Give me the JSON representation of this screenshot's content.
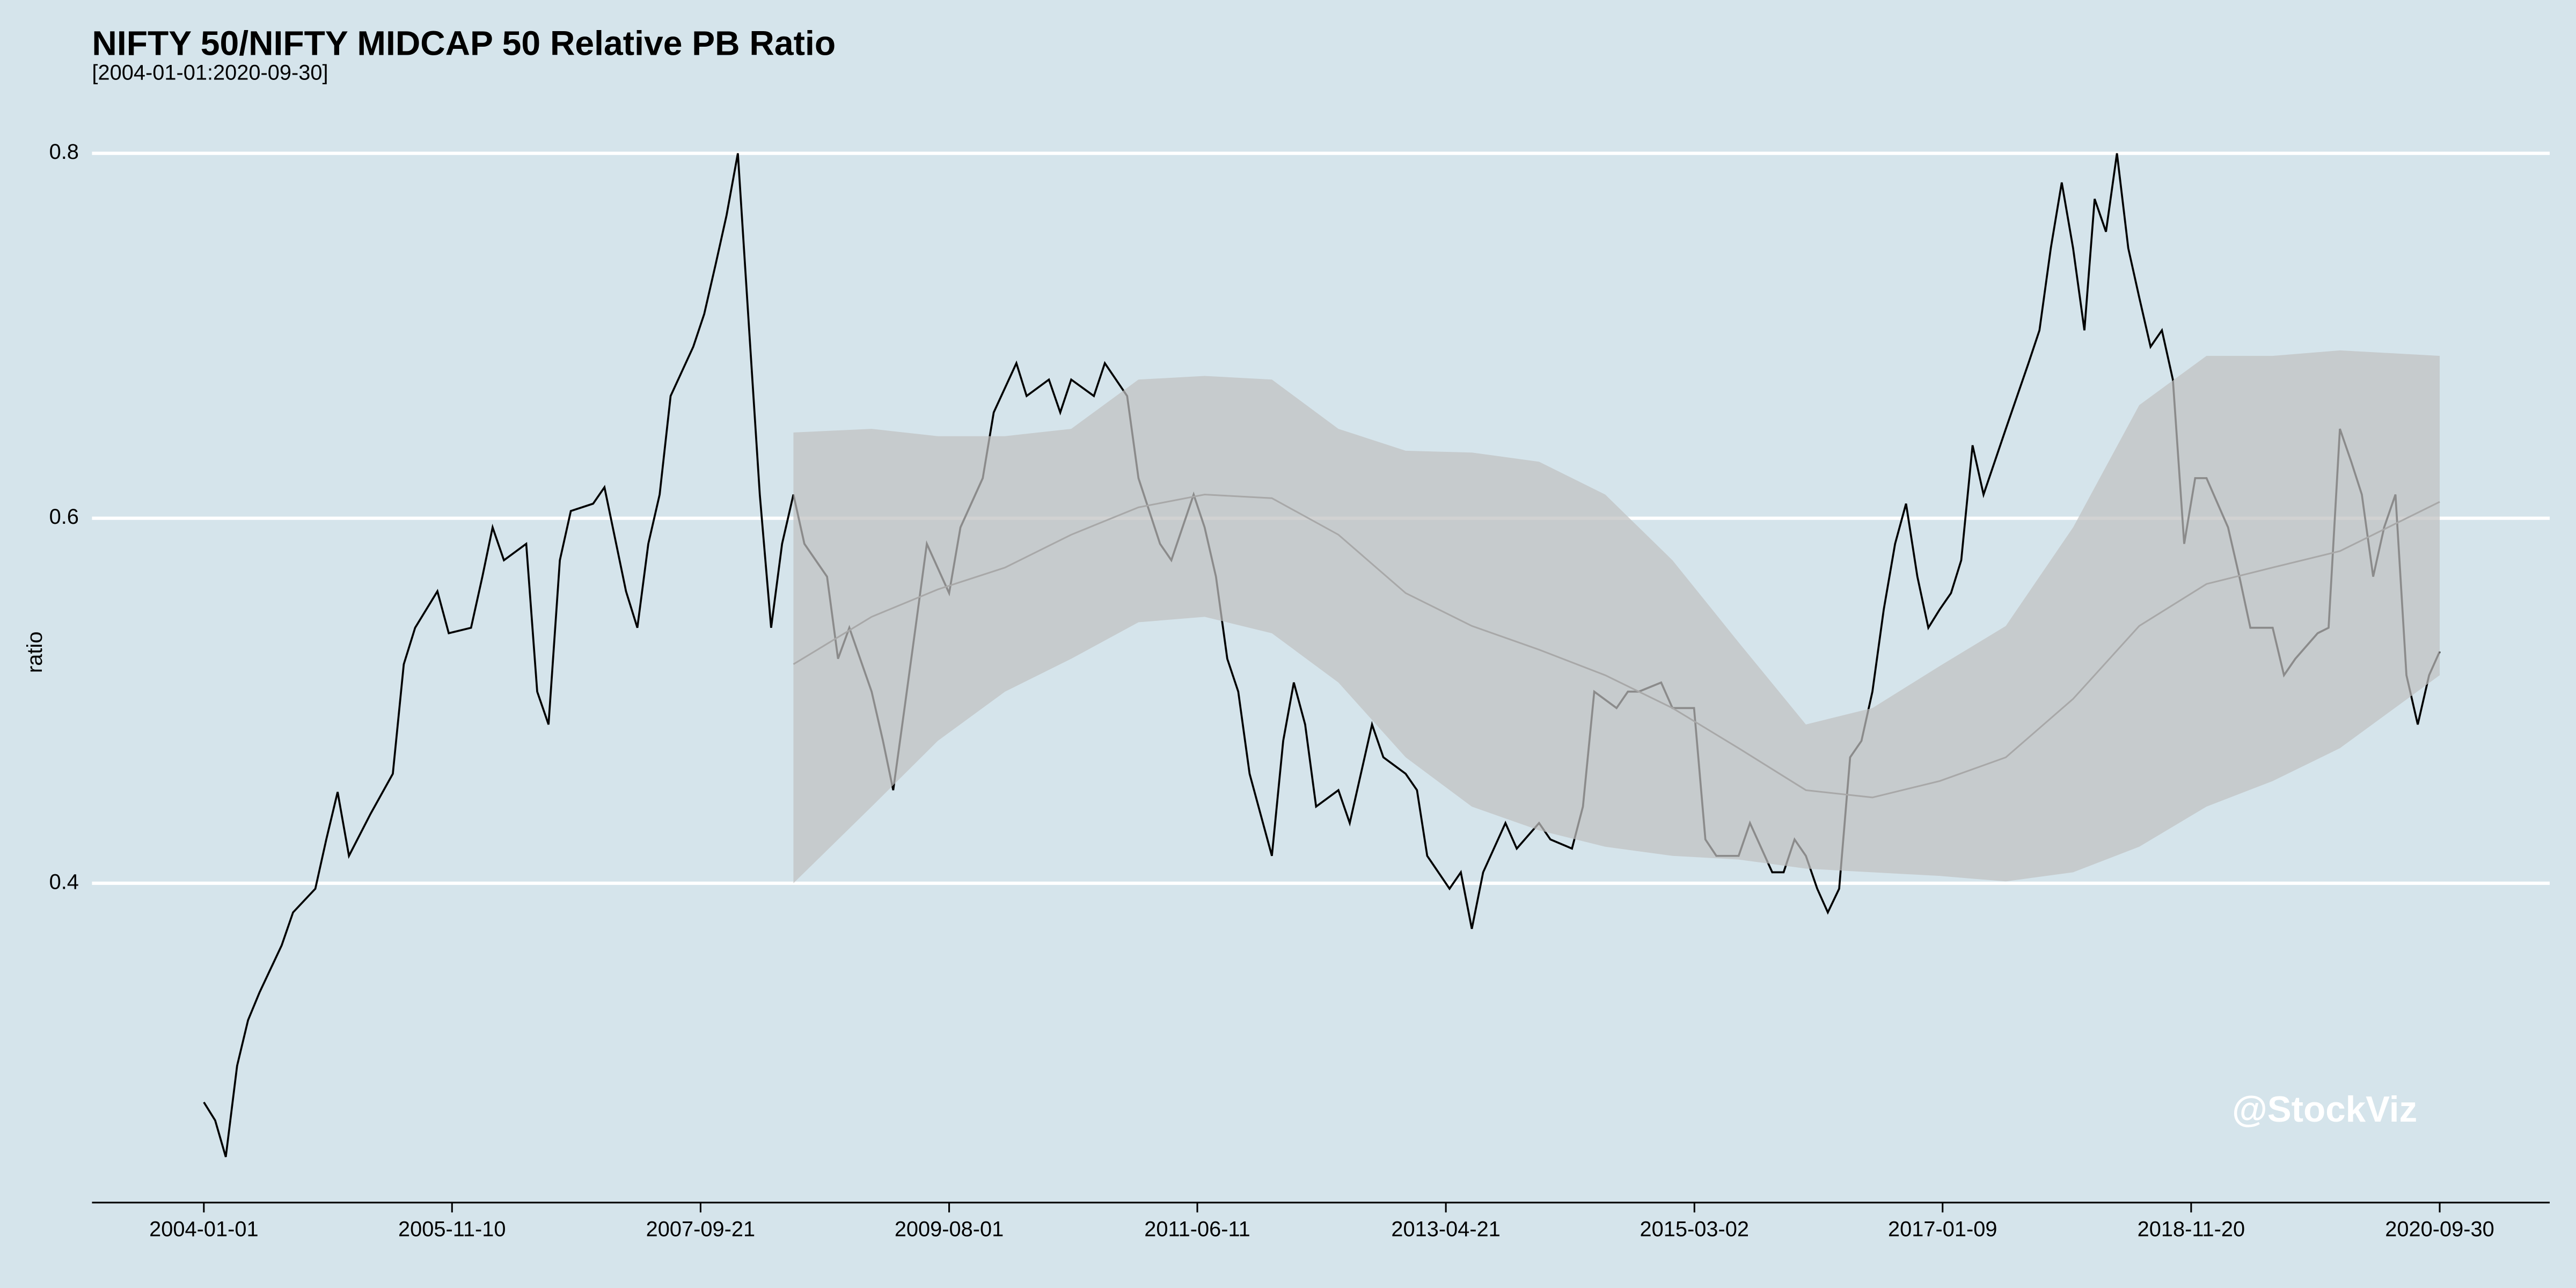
{
  "chart_data": {
    "type": "line",
    "title": "NIFTY 50/NIFTY MIDCAP 50 Relative PB Ratio",
    "subtitle": "[2004-01-01:2020-09-30]",
    "y_label": "ratio",
    "watermark": "@StockViz",
    "color": "#000000",
    "grid": true,
    "xlim": [
      "2003-03-01",
      "2021-07-28"
    ],
    "ylim": [
      0.225,
      0.83
    ],
    "xticks": [
      "2004-01-01",
      "2005-11-10",
      "2007-09-21",
      "2009-08-01",
      "2011-06-11",
      "2013-04-21",
      "2015-03-02",
      "2017-01-09",
      "2018-11-20",
      "2020-09-30"
    ],
    "yticks": [
      0.4,
      0.6,
      0.8
    ],
    "x": [
      "2004-01-01",
      "2004-02-01",
      "2004-03-01",
      "2004-04-01",
      "2004-05-01",
      "2004-06-01",
      "2004-08-01",
      "2004-09-01",
      "2004-11-01",
      "2004-12-01",
      "2005-01-01",
      "2005-02-01",
      "2005-04-01",
      "2005-06-01",
      "2005-07-01",
      "2005-08-01",
      "2005-10-01",
      "2005-11-01",
      "2006-01-01",
      "2006-02-01",
      "2006-03-01",
      "2006-04-01",
      "2006-06-01",
      "2006-07-01",
      "2006-08-01",
      "2006-09-01",
      "2006-10-01",
      "2006-12-01",
      "2007-01-01",
      "2007-03-01",
      "2007-04-01",
      "2007-05-01",
      "2007-06-01",
      "2007-07-01",
      "2007-09-01",
      "2007-10-01",
      "2007-11-01",
      "2007-12-01",
      "2008-01-01",
      "2008-02-01",
      "2008-03-01",
      "2008-04-01",
      "2008-05-01",
      "2008-06-01",
      "2008-07-01",
      "2008-09-01",
      "2008-10-01",
      "2008-11-01",
      "2009-01-01",
      "2009-02-01",
      "2009-03-01",
      "2009-04-01",
      "2009-05-01",
      "2009-06-01",
      "2009-08-01",
      "2009-09-01",
      "2009-11-01",
      "2009-12-01",
      "2010-02-01",
      "2010-03-01",
      "2010-05-01",
      "2010-06-01",
      "2010-07-01",
      "2010-09-01",
      "2010-10-01",
      "2010-12-01",
      "2011-01-01",
      "2011-03-01",
      "2011-04-01",
      "2011-06-01",
      "2011-07-01",
      "2011-08-01",
      "2011-09-01",
      "2011-10-01",
      "2011-11-01",
      "2012-01-01",
      "2012-02-01",
      "2012-03-01",
      "2012-04-01",
      "2012-05-01",
      "2012-07-01",
      "2012-08-01",
      "2012-10-01",
      "2012-11-01",
      "2013-01-01",
      "2013-02-01",
      "2013-03-01",
      "2013-05-01",
      "2013-06-01",
      "2013-07-01",
      "2013-08-01",
      "2013-10-01",
      "2013-11-01",
      "2014-01-01",
      "2014-02-01",
      "2014-04-01",
      "2014-05-01",
      "2014-06-01",
      "2014-08-01",
      "2014-09-01",
      "2014-10-01",
      "2014-12-01",
      "2015-01-01",
      "2015-03-01",
      "2015-04-01",
      "2015-05-01",
      "2015-07-01",
      "2015-08-01",
      "2015-10-01",
      "2015-11-01",
      "2015-12-01",
      "2016-01-01",
      "2016-02-01",
      "2016-03-01",
      "2016-04-01",
      "2016-05-01",
      "2016-06-01",
      "2016-07-01",
      "2016-08-01",
      "2016-09-01",
      "2016-10-01",
      "2016-11-01",
      "2016-12-01",
      "2017-01-01",
      "2017-02-01",
      "2017-03-01",
      "2017-04-01",
      "2017-05-01",
      "2017-07-01",
      "2017-09-01",
      "2017-10-01",
      "2017-11-01",
      "2017-12-01",
      "2018-01-01",
      "2018-02-01",
      "2018-03-01",
      "2018-04-01",
      "2018-05-01",
      "2018-06-01",
      "2018-07-01",
      "2018-08-01",
      "2018-09-01",
      "2018-10-01",
      "2018-11-01",
      "2018-12-01",
      "2019-01-01",
      "2019-03-01",
      "2019-04-01",
      "2019-05-01",
      "2019-07-01",
      "2019-08-01",
      "2019-09-01",
      "2019-11-01",
      "2019-12-01",
      "2020-01-01",
      "2020-02-01",
      "2020-03-01",
      "2020-04-01",
      "2020-05-01",
      "2020-06-01",
      "2020-07-01",
      "2020-08-01",
      "2020-09-01",
      "2020-09-30"
    ],
    "values": [
      0.28,
      0.27,
      0.25,
      0.3,
      0.325,
      0.34,
      0.366,
      0.384,
      0.397,
      0.424,
      0.45,
      0.415,
      0.438,
      0.46,
      0.52,
      0.54,
      0.56,
      0.537,
      0.54,
      0.568,
      0.595,
      0.577,
      0.586,
      0.505,
      0.487,
      0.577,
      0.604,
      0.608,
      0.617,
      0.56,
      0.54,
      0.586,
      0.613,
      0.667,
      0.694,
      0.712,
      0.739,
      0.766,
      0.8,
      0.703,
      0.613,
      0.54,
      0.586,
      0.613,
      0.586,
      0.568,
      0.523,
      0.54,
      0.505,
      0.478,
      0.451,
      0.496,
      0.54,
      0.586,
      0.559,
      0.595,
      0.622,
      0.658,
      0.685,
      0.667,
      0.676,
      0.658,
      0.676,
      0.667,
      0.685,
      0.667,
      0.622,
      0.586,
      0.577,
      0.613,
      0.595,
      0.568,
      0.523,
      0.505,
      0.46,
      0.415,
      0.478,
      0.51,
      0.487,
      0.442,
      0.451,
      0.433,
      0.487,
      0.469,
      0.46,
      0.451,
      0.415,
      0.397,
      0.406,
      0.375,
      0.406,
      0.433,
      0.419,
      0.433,
      0.424,
      0.419,
      0.442,
      0.505,
      0.496,
      0.505,
      0.505,
      0.51,
      0.496,
      0.496,
      0.424,
      0.415,
      0.415,
      0.433,
      0.406,
      0.406,
      0.424,
      0.415,
      0.397,
      0.384,
      0.397,
      0.469,
      0.478,
      0.505,
      0.55,
      0.586,
      0.608,
      0.568,
      0.54,
      0.55,
      0.559,
      0.577,
      0.64,
      0.613,
      0.649,
      0.685,
      0.703,
      0.748,
      0.784,
      0.748,
      0.703,
      0.775,
      0.757,
      0.8,
      0.748,
      0.721,
      0.694,
      0.703,
      0.676,
      0.586,
      0.622,
      0.622,
      0.595,
      0.568,
      0.54,
      0.54,
      0.514,
      0.523,
      0.537,
      0.54,
      0.649,
      0.631,
      0.613,
      0.568,
      0.595,
      0.613,
      0.514,
      0.487,
      0.514,
      0.527
    ],
    "band": {
      "color": "#c0c0c0",
      "mid_color": "#a8a8a8",
      "x": [
        "2008-06-01",
        "2009-01-01",
        "2009-07-01",
        "2010-01-01",
        "2010-07-01",
        "2011-01-01",
        "2011-07-01",
        "2012-01-01",
        "2012-07-01",
        "2013-01-01",
        "2013-07-01",
        "2014-01-01",
        "2014-07-01",
        "2015-01-01",
        "2015-07-01",
        "2016-01-01",
        "2016-07-01",
        "2017-01-01",
        "2017-07-01",
        "2018-01-01",
        "2018-07-01",
        "2019-01-01",
        "2019-07-01",
        "2020-01-01",
        "2020-09-30"
      ],
      "upper": [
        0.647,
        0.649,
        0.645,
        0.645,
        0.649,
        0.676,
        0.678,
        0.676,
        0.649,
        0.637,
        0.636,
        0.631,
        0.613,
        0.577,
        0.532,
        0.487,
        0.496,
        0.519,
        0.541,
        0.595,
        0.662,
        0.689,
        0.689,
        0.692,
        0.689
      ],
      "lower": [
        0.4,
        0.442,
        0.478,
        0.505,
        0.523,
        0.543,
        0.546,
        0.537,
        0.51,
        0.469,
        0.442,
        0.429,
        0.42,
        0.415,
        0.413,
        0.408,
        0.406,
        0.404,
        0.401,
        0.406,
        0.42,
        0.442,
        0.456,
        0.474,
        0.514
      ],
      "mid": [
        0.52,
        0.546,
        0.561,
        0.573,
        0.591,
        0.606,
        0.613,
        0.611,
        0.591,
        0.559,
        0.541,
        0.528,
        0.514,
        0.496,
        0.474,
        0.451,
        0.447,
        0.456,
        0.469,
        0.501,
        0.541,
        0.564,
        0.573,
        0.582,
        0.609
      ]
    }
  }
}
